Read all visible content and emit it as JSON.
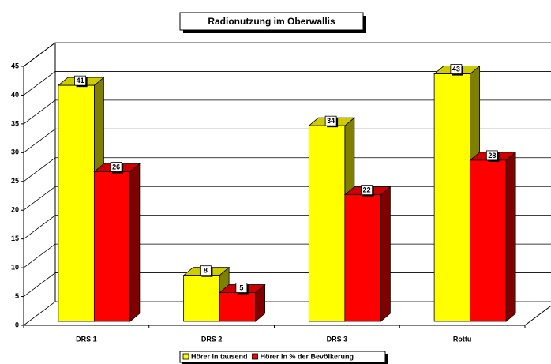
{
  "chart_data": {
    "type": "bar",
    "title": "Radionutzung im Oberwallis",
    "categories": [
      "DRS 1",
      "DRS 2",
      "DRS 3",
      "Rottu"
    ],
    "series": [
      {
        "name": "Hörer in tausend",
        "color": "#ffff00",
        "values": [
          41,
          8,
          34,
          43
        ]
      },
      {
        "name": "Hörer in % der Bevölkerung",
        "color": "#ff0000",
        "values": [
          26,
          5,
          22,
          28
        ]
      }
    ],
    "ylim": [
      0,
      45
    ],
    "yticks": [
      0,
      5,
      10,
      15,
      20,
      25,
      30,
      35,
      40,
      45
    ],
    "grid": true,
    "legend": "bottom"
  }
}
